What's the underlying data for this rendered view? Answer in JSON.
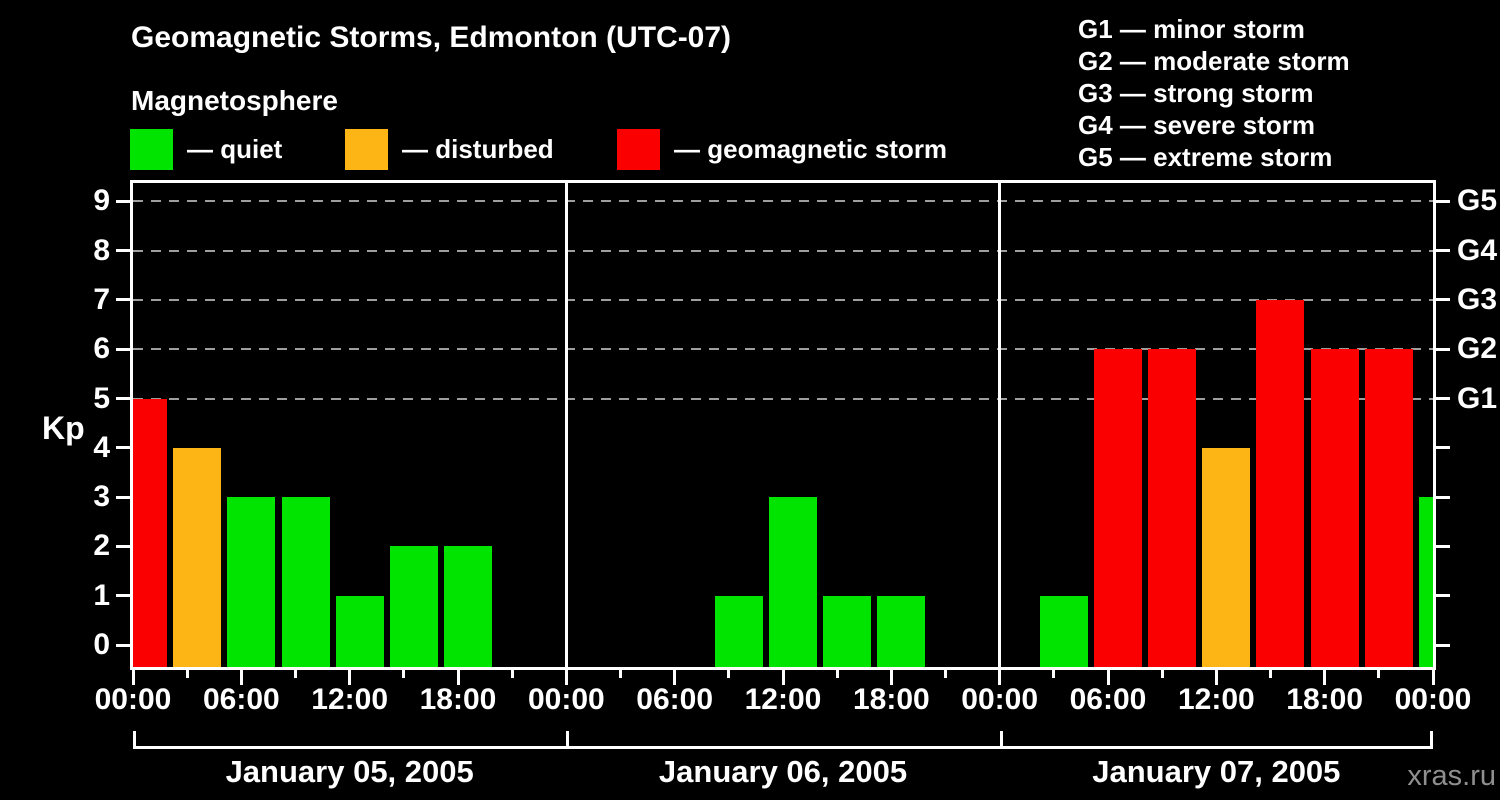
{
  "header": {
    "title": "Geomagnetic Storms, Edmonton (UTC-07)",
    "subtitle": "Magnetosphere"
  },
  "legend": {
    "items": [
      {
        "key": "quiet",
        "label": "— quiet"
      },
      {
        "key": "disturbed",
        "label": "— disturbed"
      },
      {
        "key": "storm",
        "label": "— geomagnetic storm"
      }
    ]
  },
  "g_legend": {
    "items": [
      "G1 — minor storm",
      "G2 — moderate storm",
      "G3 — strong storm",
      "G4 — severe storm",
      "G5 — extreme storm"
    ]
  },
  "colors": {
    "background": "#000000",
    "text": "#ffffff",
    "grid": "#9e9e9e",
    "quiet": "#00e400",
    "disturbed": "#fcb514",
    "storm": "#fb0000",
    "watermark": "#8f8f8f"
  },
  "watermark": "xras.ru",
  "chart_data": {
    "type": "bar",
    "title": "Geomagnetic Storms, Edmonton (UTC-07)",
    "subtitle": "Magnetosphere",
    "ylabel": "Kp",
    "ylim": [
      0,
      9
    ],
    "yticks": [
      0,
      1,
      2,
      3,
      4,
      5,
      6,
      7,
      8,
      9
    ],
    "gridlines_at": [
      5,
      6,
      7,
      8,
      9
    ],
    "grid": true,
    "legend_position": "top",
    "right_axis": [
      {
        "kp": 5,
        "label": "G1"
      },
      {
        "kp": 6,
        "label": "G2"
      },
      {
        "kp": 7,
        "label": "G3"
      },
      {
        "kp": 8,
        "label": "G4"
      },
      {
        "kp": 9,
        "label": "G5"
      }
    ],
    "x_interval_hours": 3,
    "x_label_cycle": [
      "00:00",
      "06:00",
      "12:00",
      "18:00"
    ],
    "x_last_label": "00:00",
    "days": [
      {
        "date": "January 05, 2005",
        "kp": [
          {
            "time": "00:00",
            "value": 5,
            "level": "storm"
          },
          {
            "time": "03:00",
            "value": 4,
            "level": "disturbed"
          },
          {
            "time": "06:00",
            "value": 3,
            "level": "quiet"
          },
          {
            "time": "09:00",
            "value": 3,
            "level": "quiet"
          },
          {
            "time": "12:00",
            "value": 1,
            "level": "quiet"
          },
          {
            "time": "15:00",
            "value": 2,
            "level": "quiet"
          },
          {
            "time": "18:00",
            "value": 2,
            "level": "quiet"
          },
          {
            "time": "21:00",
            "value": 0,
            "level": null
          }
        ]
      },
      {
        "date": "January 06, 2005",
        "kp": [
          {
            "time": "00:00",
            "value": 0,
            "level": null
          },
          {
            "time": "03:00",
            "value": 0,
            "level": null
          },
          {
            "time": "06:00",
            "value": 0,
            "level": null
          },
          {
            "time": "09:00",
            "value": 1,
            "level": "quiet"
          },
          {
            "time": "12:00",
            "value": 3,
            "level": "quiet"
          },
          {
            "time": "15:00",
            "value": 1,
            "level": "quiet"
          },
          {
            "time": "18:00",
            "value": 1,
            "level": "quiet"
          },
          {
            "time": "21:00",
            "value": 0,
            "level": null
          }
        ]
      },
      {
        "date": "January 07, 2005",
        "kp": [
          {
            "time": "00:00",
            "value": 0,
            "level": null
          },
          {
            "time": "03:00",
            "value": 1,
            "level": "quiet"
          },
          {
            "time": "06:00",
            "value": 6,
            "level": "storm"
          },
          {
            "time": "09:00",
            "value": 6,
            "level": "storm"
          },
          {
            "time": "12:00",
            "value": 4,
            "level": "disturbed"
          },
          {
            "time": "15:00",
            "value": 7,
            "level": "storm"
          },
          {
            "time": "18:00",
            "value": 6,
            "level": "storm"
          },
          {
            "time": "21:00",
            "value": 6,
            "level": "storm"
          }
        ]
      }
    ],
    "clipped_next_bar": {
      "value": 3,
      "level": "quiet"
    }
  }
}
